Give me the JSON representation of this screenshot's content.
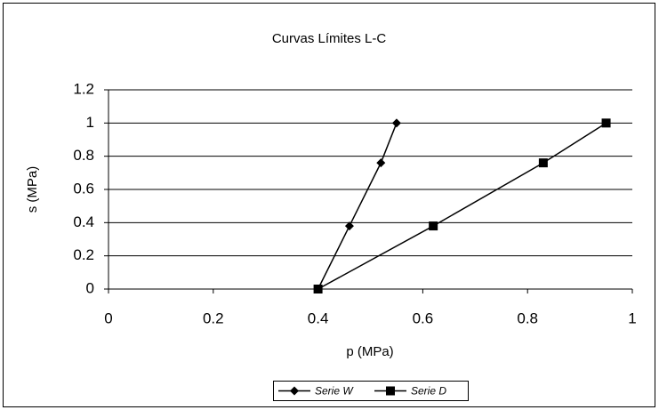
{
  "chart_data": {
    "type": "scatter",
    "title": "Curvas Límites L-C",
    "x_label": "p (MPa)",
    "y_label": "s (MPa)",
    "series": [
      {
        "name": "Serie W",
        "color": "#000000",
        "marker": "diamond",
        "x": [
          0.4,
          0.46,
          0.52,
          0.55
        ],
        "values": [
          0,
          0.38,
          0.76,
          1
        ]
      },
      {
        "name": "Serie D",
        "color": "#000000",
        "marker": "square",
        "x": [
          0.4,
          0.62,
          0.83,
          0.95
        ],
        "values": [
          0,
          0.38,
          0.76,
          1
        ]
      }
    ],
    "xlim": [
      0,
      1
    ],
    "xticks": [
      0,
      0.2,
      0.4,
      0.6,
      0.8,
      1
    ],
    "ylim": [
      0,
      1.2
    ],
    "yticks": [
      0,
      0.2,
      0.4,
      0.6,
      0.8,
      1,
      1.2
    ],
    "grid": true,
    "legend": "bottom"
  }
}
